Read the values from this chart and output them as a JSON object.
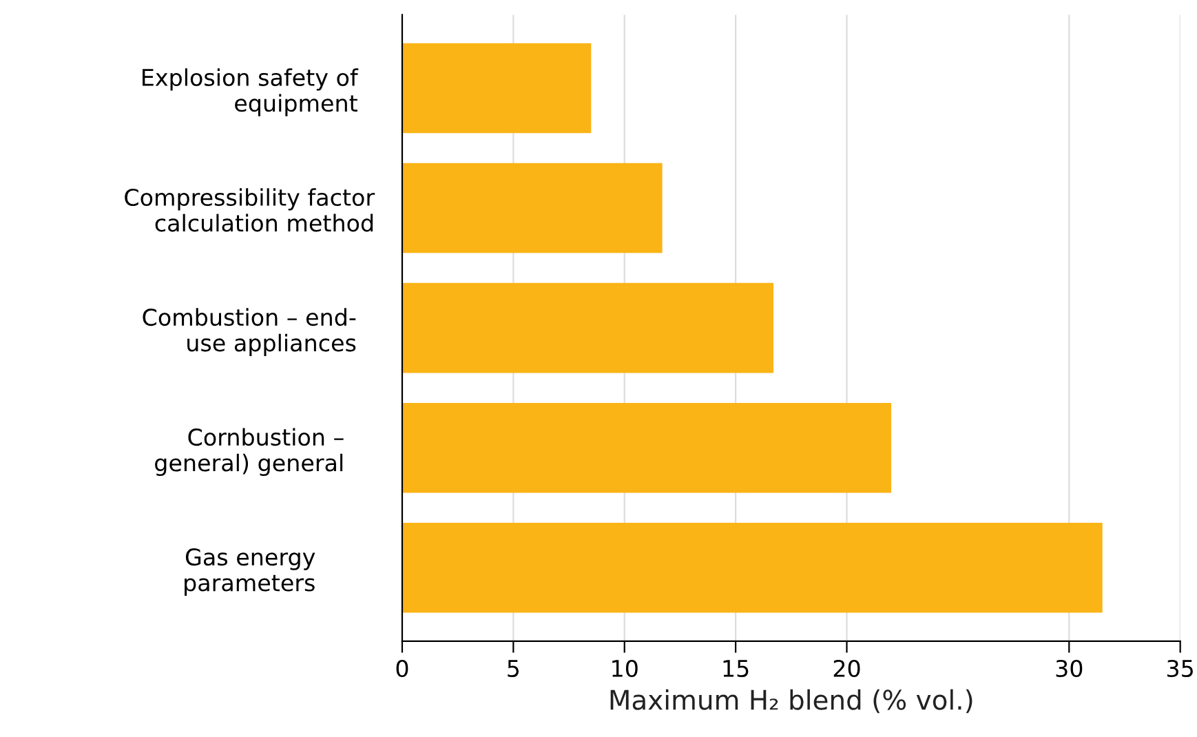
{
  "chart_data": {
    "type": "bar",
    "orientation": "horizontal",
    "categories": [
      "Explosion safety of\nequipment",
      "Compressibility factor\ncalculation method",
      "Combustion – end-\nuse appliances",
      "Cornbustion –\ngeneral) general",
      "Gas energy\nparameters"
    ],
    "values": [
      8.5,
      11.7,
      16.7,
      22,
      31.5
    ],
    "color": "#fbb416",
    "xlabel": "Maximum H₂ blend (% vol.)",
    "xlim": [
      0,
      35
    ],
    "xticks": [
      0,
      5,
      10,
      15,
      20,
      30,
      35
    ],
    "grid": "x"
  }
}
